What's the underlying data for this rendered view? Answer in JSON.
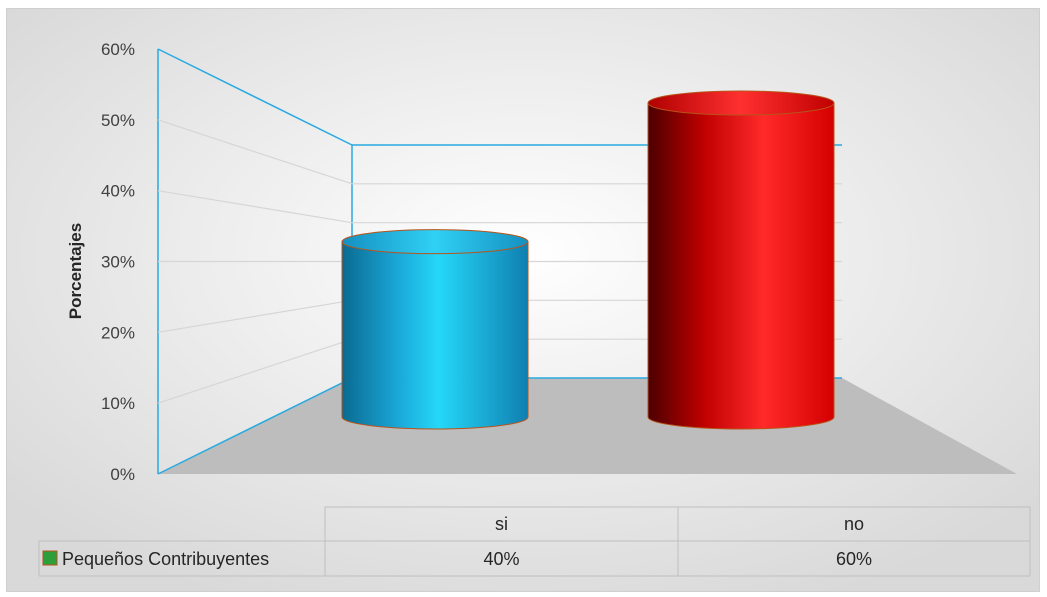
{
  "chart_data": {
    "type": "bar",
    "style": "3d-cylinder",
    "ylabel": "Porcentajes",
    "ylim": [
      0,
      60
    ],
    "yticks": [
      "0%",
      "10%",
      "20%",
      "30%",
      "40%",
      "50%",
      "60%"
    ],
    "categories": [
      "si",
      "no"
    ],
    "series": [
      {
        "name": "Pequeños Contribuyentes",
        "values": [
          40,
          60
        ],
        "value_labels": [
          "40%",
          "60%"
        ]
      }
    ],
    "bar_colors": [
      "#1aa7d8",
      "#e41b1b"
    ],
    "legend_color": "#2e9e3a",
    "wall_color": "#29a9e1",
    "floor_color": "#bdbdbd",
    "legend": "data-table",
    "grid": true
  }
}
